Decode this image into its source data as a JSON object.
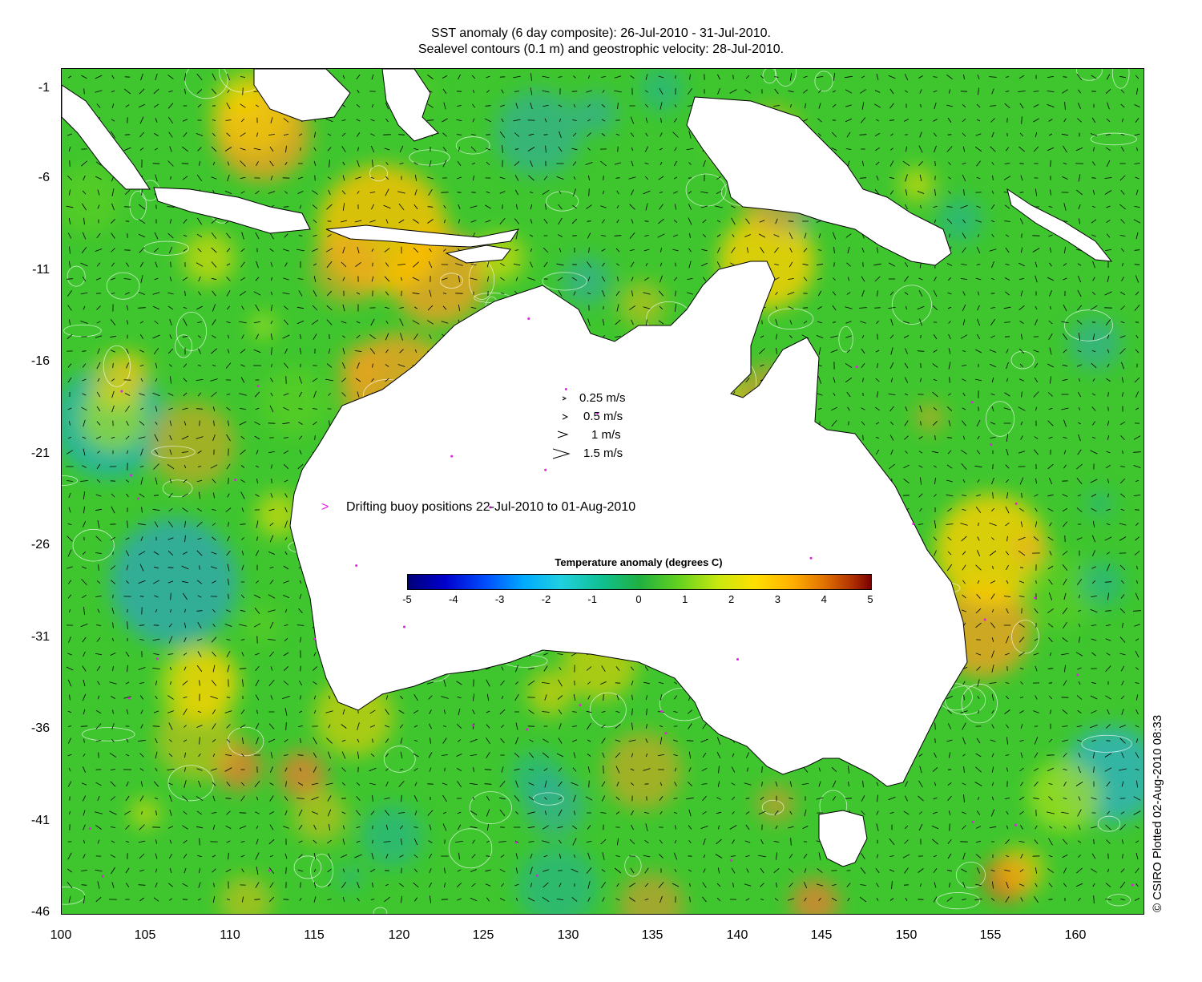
{
  "title": {
    "line1": "SST anomaly (6 day composite): 26-Jul-2010 - 31-Jul-2010.",
    "line2": "Sealevel contours (0.1 m) and geostrophic velocity: 28-Jul-2010."
  },
  "axes": {
    "x_ticks": [
      "100",
      "105",
      "110",
      "115",
      "120",
      "125",
      "130",
      "135",
      "140",
      "145",
      "150",
      "155",
      "160"
    ],
    "y_ticks": [
      "-1",
      "-6",
      "-11",
      "-16",
      "-21",
      "-26",
      "-31",
      "-36",
      "-41",
      "-46"
    ],
    "lon_range": [
      100,
      164
    ],
    "lat_range": [
      -46,
      0.5
    ]
  },
  "velocity_legend": [
    {
      "label": "0.25 m/s",
      "speed": 0.25
    },
    {
      "label": "0.5 m/s",
      "speed": 0.5
    },
    {
      "label": "1 m/s",
      "speed": 1
    },
    {
      "label": "1.5 m/s",
      "speed": 1.5
    }
  ],
  "buoy_legend": {
    "label": "Drifting buoy positions 22-Jul-2010 to 01-Aug-2010",
    "marker": ">",
    "color": "#e020e0"
  },
  "colorbar": {
    "title": "Temperature anomaly (degrees C)",
    "ticks": [
      "-5",
      "-4",
      "-3",
      "-2",
      "-1",
      "0",
      "1",
      "2",
      "3",
      "4",
      "5"
    ],
    "range": [
      -5,
      5
    ]
  },
  "credit": "© CSIRO Plotted 02-Aug-2010 08:33",
  "colors": {
    "ocean_base": "#3fc62f",
    "land": "#ffffff",
    "contour": "#ffffff",
    "arrow": "#000000",
    "buoy": "#e020e0"
  }
}
